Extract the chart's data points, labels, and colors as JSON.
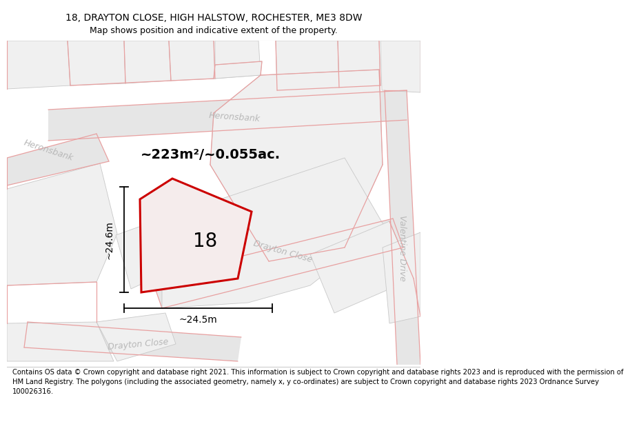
{
  "title": "18, DRAYTON CLOSE, HIGH HALSTOW, ROCHESTER, ME3 8DW",
  "subtitle": "Map shows position and indicative extent of the property.",
  "footer": "Contains OS data © Crown copyright and database right 2021. This information is subject to Crown copyright and database rights 2023 and is reproduced with the permission of\nHM Land Registry. The polygons (including the associated geometry, namely x, y co-ordinates) are subject to Crown copyright and database rights 2023 Ordnance Survey\n100026316.",
  "area_text": "~223m²/~0.055ac.",
  "width_text": "~24.5m",
  "height_text": "~24.6m",
  "number_text": "18",
  "map_bg": "#ffffff",
  "road_fill": "#e8e8e8",
  "road_edge_red": "#e8a0a0",
  "road_edge_gray": "#c8c8c8",
  "plot_fill": "#ececec",
  "plot_edge": "#c0c0c0",
  "prop_fill": "#f0e8e8",
  "prop_edge": "#cc0000",
  "text_road": "#b0b0b0",
  "title_fontsize": 10,
  "subtitle_fontsize": 9,
  "footer_fontsize": 7.2,
  "area_fontsize": 14,
  "number_fontsize": 20,
  "dim_fontsize": 10
}
